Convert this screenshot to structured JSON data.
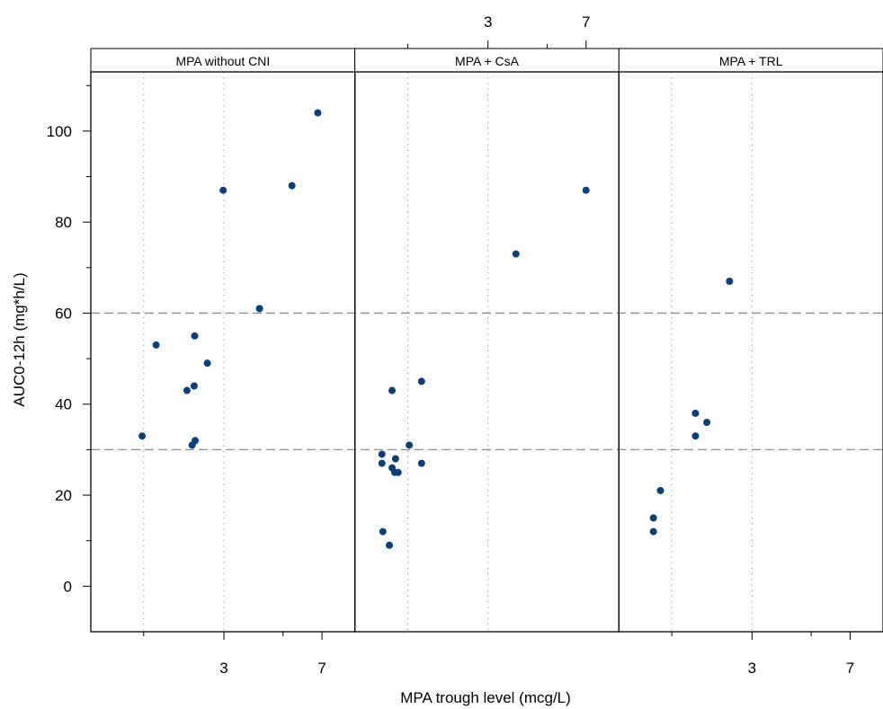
{
  "chart_data": {
    "type": "scatter",
    "xlabel": "MPA trough level (mcg/L)",
    "ylabel": "AUC0-12h (mg*h/L)",
    "x_scale": "log",
    "x_major_ticks": [
      3,
      7
    ],
    "x_minor_ticks": [
      1.5,
      5
    ],
    "x_range": [
      0.95,
      9.3
    ],
    "ylim": [
      -10,
      113
    ],
    "y_ticks": [
      0,
      20,
      40,
      60,
      80,
      100
    ],
    "y_minor_ticks": [
      10,
      30,
      50,
      70,
      90,
      110
    ],
    "reference_lines_y": [
      30,
      60
    ],
    "vertical_gridlines_x": [
      1.5,
      3
    ],
    "point_color": "#0a3f7a",
    "reference_line_color": "#8c8c8c",
    "panels": [
      {
        "label": "MPA without CNI",
        "points": [
          {
            "x": 1.48,
            "y": 33
          },
          {
            "x": 1.67,
            "y": 53
          },
          {
            "x": 2.18,
            "y": 43
          },
          {
            "x": 2.28,
            "y": 31
          },
          {
            "x": 2.34,
            "y": 32
          },
          {
            "x": 2.33,
            "y": 55
          },
          {
            "x": 2.32,
            "y": 44
          },
          {
            "x": 2.6,
            "y": 49
          },
          {
            "x": 2.98,
            "y": 87
          },
          {
            "x": 4.08,
            "y": 61
          },
          {
            "x": 5.4,
            "y": 88
          },
          {
            "x": 6.75,
            "y": 104
          }
        ]
      },
      {
        "label": "MPA + CsA",
        "points": [
          {
            "x": 1.2,
            "y": 29
          },
          {
            "x": 1.2,
            "y": 27
          },
          {
            "x": 1.21,
            "y": 12
          },
          {
            "x": 1.28,
            "y": 9
          },
          {
            "x": 1.31,
            "y": 43
          },
          {
            "x": 1.31,
            "y": 26
          },
          {
            "x": 1.34,
            "y": 25
          },
          {
            "x": 1.35,
            "y": 28
          },
          {
            "x": 1.38,
            "y": 25
          },
          {
            "x": 1.52,
            "y": 31
          },
          {
            "x": 1.69,
            "y": 45
          },
          {
            "x": 1.69,
            "y": 27
          },
          {
            "x": 3.82,
            "y": 73
          },
          {
            "x": 7.0,
            "y": 87
          }
        ]
      },
      {
        "label": "MPA + TRL",
        "points": [
          {
            "x": 1.28,
            "y": 15
          },
          {
            "x": 1.28,
            "y": 12
          },
          {
            "x": 1.36,
            "y": 21
          },
          {
            "x": 1.84,
            "y": 38
          },
          {
            "x": 1.84,
            "y": 33
          },
          {
            "x": 2.03,
            "y": 36
          },
          {
            "x": 2.47,
            "y": 67
          }
        ]
      }
    ]
  }
}
